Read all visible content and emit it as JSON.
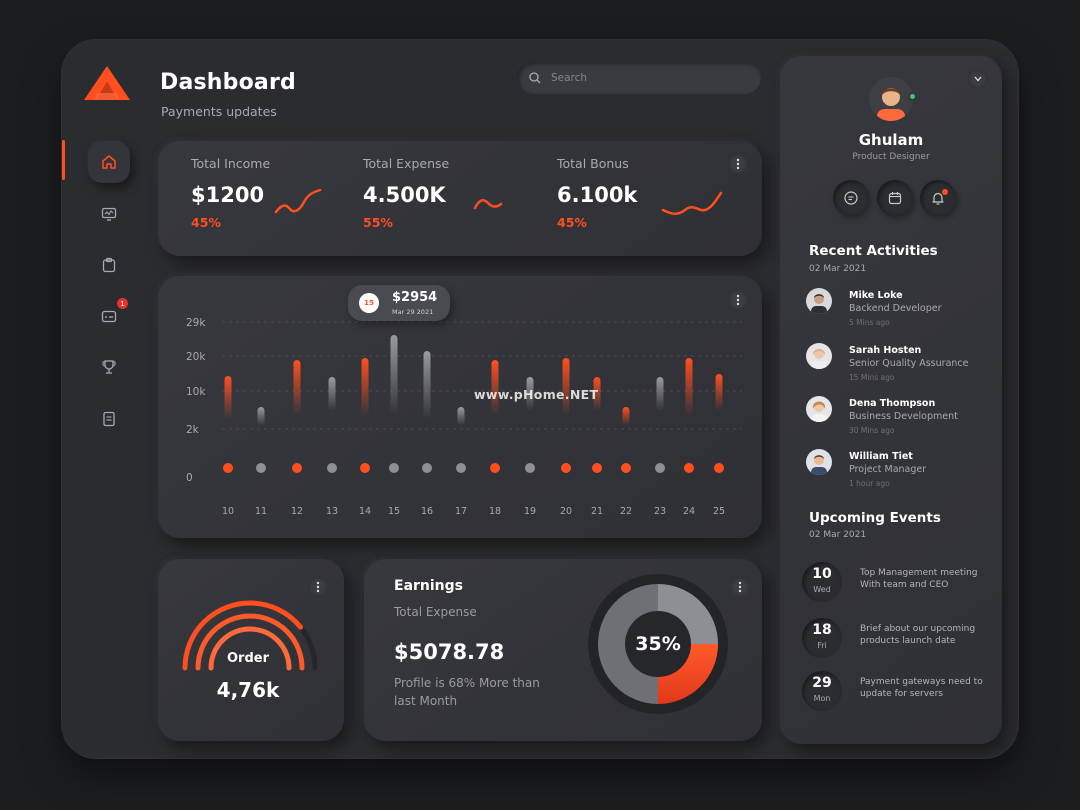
{
  "app": {
    "title": "Dashboard",
    "subtitle": "Payments updates",
    "brand_color": "#ff4f1f"
  },
  "search": {
    "placeholder": "Search"
  },
  "sidebar": {
    "items": [
      {
        "icon": "home-icon",
        "active": true
      },
      {
        "icon": "monitor-icon"
      },
      {
        "icon": "clipboard-icon"
      },
      {
        "icon": "card-icon",
        "badge": "1"
      },
      {
        "icon": "trophy-icon"
      },
      {
        "icon": "document-icon"
      }
    ]
  },
  "stats": [
    {
      "label": "Total Income",
      "value": "$1200",
      "percent": "45%"
    },
    {
      "label": "Total Expense",
      "value": "4.500K",
      "percent": "55%"
    },
    {
      "label": "Total Bonus",
      "value": "6.100k",
      "percent": "45%"
    }
  ],
  "chart_data": {
    "type": "bar",
    "categories": [
      "10",
      "11",
      "12",
      "13",
      "14",
      "15",
      "16",
      "17",
      "18",
      "19",
      "20",
      "21",
      "22",
      "23",
      "24",
      "25"
    ],
    "values": [
      14,
      6,
      18,
      11,
      19,
      26,
      22,
      6,
      18,
      11,
      19,
      11,
      6,
      11,
      19,
      12
    ],
    "highlight": [
      true,
      false,
      true,
      false,
      true,
      false,
      false,
      false,
      true,
      false,
      true,
      true,
      true,
      false,
      true,
      true
    ],
    "y_ticks": [
      "29k",
      "20k",
      "10k",
      "2k",
      "0"
    ],
    "tooltip": {
      "badge": "15",
      "amount": "$2954",
      "date": "Mar 29 2021"
    },
    "colors": {
      "highlight": "#ff4f1f",
      "normal": "#8f9096"
    },
    "grid": true
  },
  "watermark": "www.pHome.NET",
  "order": {
    "label": "Order",
    "value": "4,76k"
  },
  "earnings": {
    "title": "Earnings",
    "subtitle": "Total Expense",
    "amount": "$5078.78",
    "note": "Profile is 68% More than last Month",
    "donut_percent": "35%",
    "donut_value": 0.35
  },
  "profile": {
    "name": "Ghulam",
    "role": "Product Designer"
  },
  "activities": {
    "title": "Recent Activities",
    "date": "02 Mar 2021",
    "items": [
      {
        "name": "Mike Loke",
        "role": "Backend Developer",
        "time": "5 Mins ago"
      },
      {
        "name": "Sarah Hosten",
        "role": "Senior Quality Assurance",
        "time": "15 Mins ago"
      },
      {
        "name": "Dena Thompson",
        "role": "Business Development",
        "time": "30 Mins ago"
      },
      {
        "name": "William Tiet",
        "role": "Project Manager",
        "time": "1 hour ago"
      }
    ]
  },
  "events": {
    "title": "Upcoming Events",
    "date": "02 Mar 2021",
    "items": [
      {
        "day": "10",
        "weekday": "Wed",
        "text": "Top Management meeting With team and CEO"
      },
      {
        "day": "18",
        "weekday": "Fri",
        "text": "Brief about our upcoming products launch date"
      },
      {
        "day": "29",
        "weekday": "Mon",
        "text": "Payment gateways need to update for servers"
      }
    ]
  }
}
